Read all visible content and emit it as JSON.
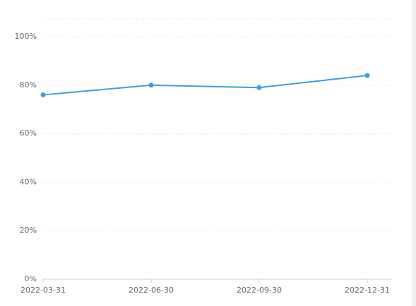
{
  "chart_data": {
    "type": "line",
    "categories": [
      "2022-03-31",
      "2022-06-30",
      "2022-09-30",
      "2022-12-31"
    ],
    "series": [
      {
        "values": [
          76,
          80,
          79,
          84
        ],
        "color": "#3a9ee4"
      }
    ],
    "ylim": [
      0,
      100
    ],
    "yticks": [
      {
        "value": 0,
        "label": "0%"
      },
      {
        "value": 20,
        "label": "20%"
      },
      {
        "value": 40,
        "label": "40%"
      },
      {
        "value": 60,
        "label": "60%"
      },
      {
        "value": 80,
        "label": "80%"
      },
      {
        "value": 100,
        "label": "100%"
      }
    ],
    "grid": true
  }
}
